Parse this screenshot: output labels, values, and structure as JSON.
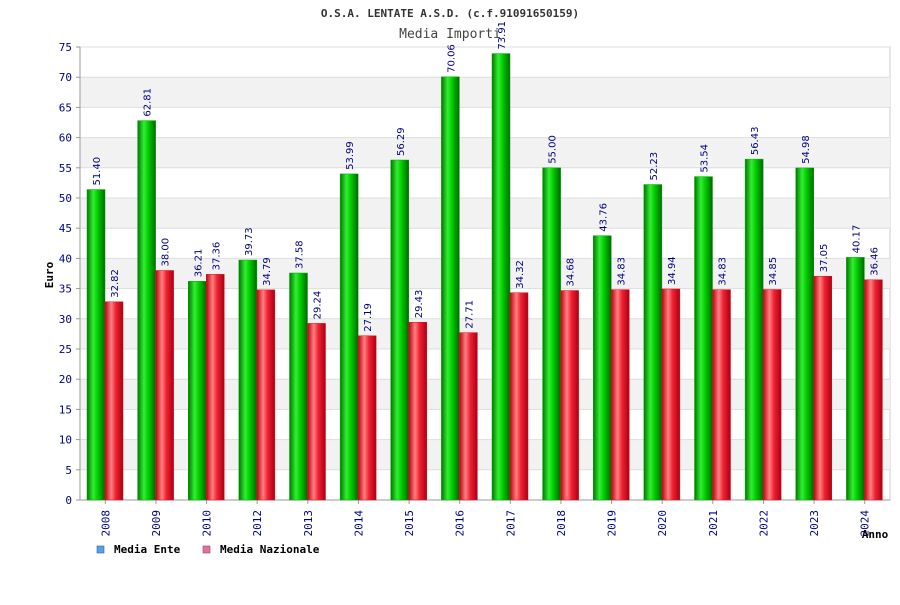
{
  "chart_data": {
    "type": "bar",
    "title": "O.S.A. LENTATE A.S.D. (c.f.91091650159)",
    "subtitle": "Media Importi",
    "ylabel": "Euro",
    "xlabel": "Anno",
    "ylim": [
      0,
      75
    ],
    "yticks": [
      "0",
      "5",
      "10",
      "15",
      "20",
      "25",
      "30",
      "35",
      "40",
      "45",
      "50",
      "55",
      "60",
      "65",
      "70",
      "75"
    ],
    "categories": [
      "2008",
      "2009",
      "2010",
      "2012",
      "2013",
      "2014",
      "2015",
      "2016",
      "2017",
      "2018",
      "2019",
      "2020",
      "2021",
      "2022",
      "2023",
      "2024"
    ],
    "series": [
      {
        "name": "Media Ente",
        "color": "#00aa00",
        "legend_color": "#5aa0e8",
        "values": [
          51.4,
          62.81,
          36.21,
          39.73,
          37.58,
          53.99,
          56.29,
          70.06,
          73.91,
          55.0,
          43.76,
          52.23,
          53.54,
          56.43,
          54.98,
          40.17
        ],
        "labels": [
          "51.40",
          "62.81",
          "36.21",
          "39.73",
          "37.58",
          "53.99",
          "56.29",
          "70.06",
          "73.91",
          "55.00",
          "43.76",
          "52.23",
          "53.54",
          "56.43",
          "54.98",
          "40.17"
        ]
      },
      {
        "name": "Media Nazionale",
        "color": "#dd1122",
        "legend_color": "#e070a0",
        "values": [
          32.82,
          38.0,
          37.36,
          34.79,
          29.24,
          27.19,
          29.43,
          27.71,
          34.32,
          34.68,
          34.83,
          34.94,
          34.83,
          34.85,
          37.05,
          36.46
        ],
        "labels": [
          "32.82",
          "38.00",
          "37.36",
          "34.79",
          "29.24",
          "27.19",
          "29.43",
          "27.71",
          "34.32",
          "34.68",
          "34.83",
          "34.94",
          "34.83",
          "34.85",
          "37.05",
          "36.46"
        ]
      }
    ],
    "grid": true,
    "legend": "bottom-left"
  }
}
